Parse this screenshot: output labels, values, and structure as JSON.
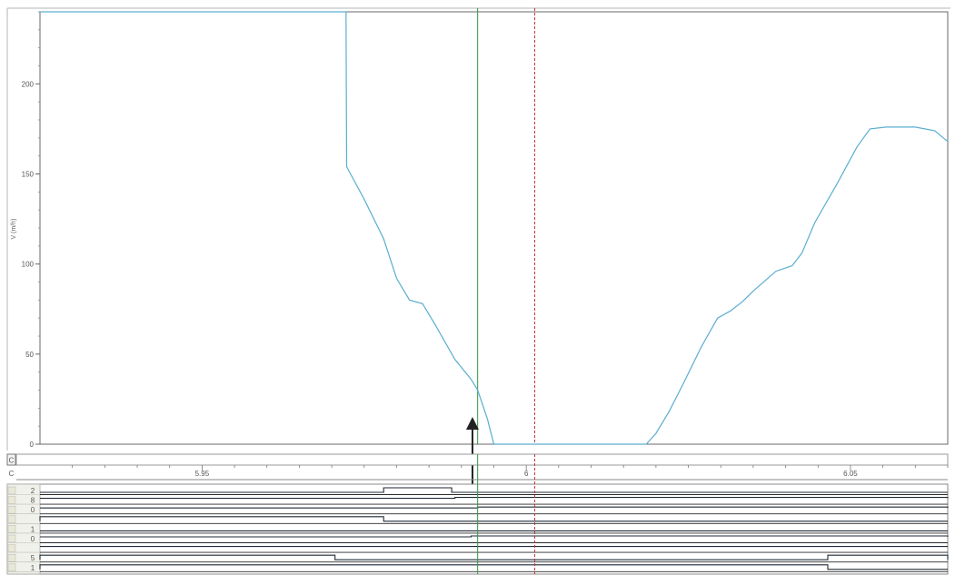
{
  "chart_data": {
    "type": "line",
    "title": "",
    "ylabel": "V (m/h)",
    "xlabel": "",
    "xlim": [
      5.925,
      6.065
    ],
    "ylim": [
      0,
      240
    ],
    "x_ticks": [
      {
        "value": 5.95,
        "label": "5.95"
      },
      {
        "value": 6.0,
        "label": "6"
      },
      {
        "value": 6.05,
        "label": "6.05"
      }
    ],
    "y_ticks": [
      {
        "value": 0,
        "label": "0"
      },
      {
        "value": 50,
        "label": "50"
      },
      {
        "value": 100,
        "label": "100"
      },
      {
        "value": 150,
        "label": "150"
      },
      {
        "value": 200,
        "label": "200"
      }
    ],
    "grid": false,
    "series": [
      {
        "name": "",
        "color": "#5aaed0",
        "x": [
          5.925,
          5.9722,
          5.9723,
          5.975,
          5.978,
          5.98,
          5.982,
          5.984,
          5.986,
          5.989,
          5.9915,
          5.9925,
          5.994,
          5.995,
          6.0,
          6.005,
          6.0143,
          6.0185,
          6.02,
          6.022,
          6.024,
          6.027,
          6.0295,
          6.0315,
          6.0333,
          6.035,
          6.0385,
          6.041,
          6.0425,
          6.0445,
          6.048,
          6.051,
          6.053,
          6.0555,
          6.06,
          6.063,
          6.065
        ],
        "y": [
          240,
          240,
          154,
          136,
          114,
          92,
          80,
          78,
          66,
          47,
          36,
          30,
          14,
          0,
          0,
          0,
          0,
          0,
          6,
          18,
          32,
          54,
          70,
          74,
          79,
          85,
          96,
          99,
          106,
          123,
          145,
          165,
          175,
          176,
          176,
          174,
          168
        ]
      }
    ],
    "markers": [
      {
        "name": "green-cursor",
        "x": 5.9925,
        "color": "#2e9a3e"
      },
      {
        "name": "red-cursor",
        "x": 6.0013,
        "color": "#c0303a"
      }
    ],
    "annotations": [
      {
        "type": "arrow",
        "x": 5.9917,
        "y_from": -52,
        "y_to": 0,
        "color": "#222222"
      }
    ]
  },
  "digital_panel": {
    "row_labels": [
      "2",
      "8",
      "0",
      "",
      "1",
      "0",
      "",
      "5",
      "1"
    ],
    "corner_labels": [
      "C",
      "C"
    ],
    "traces": [
      {
        "low": 0,
        "pulses": [
          [
            5.978,
            5.9885
          ]
        ]
      },
      {
        "low": 1,
        "pulses": [
          [
            5.989,
            6.065
          ]
        ]
      },
      {
        "low": 1,
        "pulses": [
          [
            5.9925,
            6.065
          ]
        ]
      },
      {
        "low": 0,
        "pulses": [
          [
            5.925,
            5.978
          ]
        ]
      },
      {
        "low": 0,
        "pulses": []
      },
      {
        "low": 1,
        "pulses": [
          [
            5.9915,
            6.065
          ]
        ]
      },
      {
        "low": 1,
        "pulses": []
      },
      {
        "low": 0,
        "pulses": [
          [
            5.925,
            5.9705
          ],
          [
            6.0465,
            6.065
          ]
        ]
      },
      {
        "low": 0,
        "pulses": [
          [
            5.925,
            6.0465
          ]
        ]
      }
    ]
  }
}
